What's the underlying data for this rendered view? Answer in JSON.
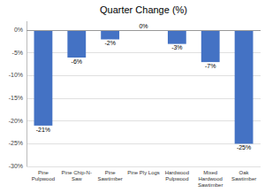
{
  "chart_data": {
    "type": "bar",
    "title": "Quarter Change (%)",
    "categories": [
      "Pine\nPulpwood",
      "Pine Chip-N-\nSaw",
      "Pine\nSawtimber",
      "Pine Ply Logs",
      "Hardwood\nPulpwood",
      "Mixed\nHardwood\nSawtimber",
      "Oak\nSawtimber"
    ],
    "values": [
      -21,
      -6,
      -2,
      0,
      -3,
      -7,
      -25
    ],
    "value_labels": [
      "-21%",
      "-6%",
      "-2%",
      "0%",
      "-3%",
      "-7%",
      "-25%"
    ],
    "data_labels": true,
    "color": "#4472C4",
    "ylim": [
      -30,
      2
    ],
    "yticks": [
      {
        "value": 0,
        "label": "0%"
      },
      {
        "value": -5,
        "label": "-5%"
      },
      {
        "value": -10,
        "label": "-10%"
      },
      {
        "value": -15,
        "label": "-15%"
      },
      {
        "value": -20,
        "label": "-20%"
      },
      {
        "value": -25,
        "label": "-25%"
      },
      {
        "value": -30,
        "label": "-30%"
      }
    ],
    "grid": true
  }
}
